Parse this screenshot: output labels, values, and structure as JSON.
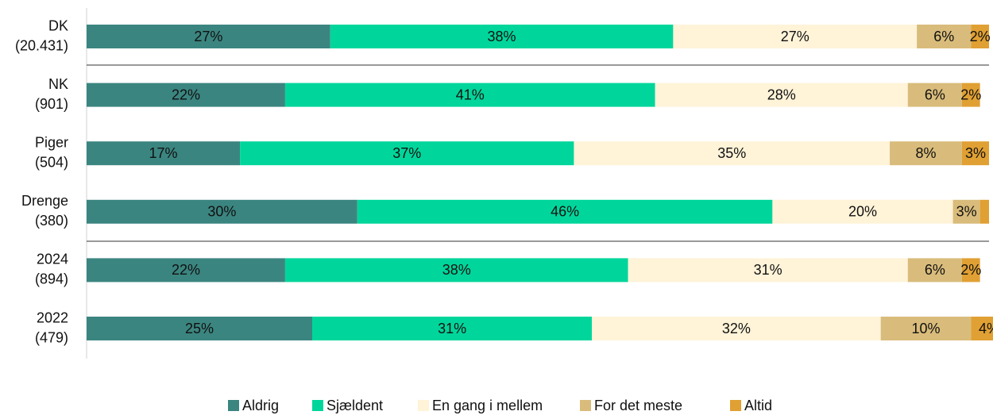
{
  "chart_data": {
    "type": "stacked_bar_horizontal",
    "categories": [
      [
        "DK",
        "(20.431)"
      ],
      [
        "NK",
        "(901)"
      ],
      [
        "Piger",
        "(504)"
      ],
      [
        "Drenge",
        "(380)"
      ],
      [
        "2024",
        "(894)"
      ],
      [
        "2022",
        "(479)"
      ]
    ],
    "xlim": [
      0,
      100
    ],
    "legend": "bottom",
    "series": [
      {
        "name": "Aldrig",
        "color": "#3b8580",
        "values": [
          27,
          22,
          17,
          30,
          22,
          25
        ],
        "value_labels": [
          "27%",
          "22%",
          "17%",
          "30%",
          "22%",
          "25%"
        ]
      },
      {
        "name": "Sjældent",
        "color": "#00d69b",
        "values": [
          38,
          41,
          37,
          46,
          38,
          31
        ],
        "value_labels": [
          "38%",
          "41%",
          "37%",
          "46%",
          "38%",
          "31%"
        ]
      },
      {
        "name": "En gang i mellem",
        "color": "#fff3d8",
        "values": [
          27,
          28,
          35,
          20,
          31,
          32
        ],
        "value_labels": [
          "27%",
          "28%",
          "35%",
          "20%",
          "31%",
          "32%"
        ]
      },
      {
        "name": "For det meste",
        "color": "#d9bc7b",
        "values": [
          6,
          6,
          8,
          3,
          6,
          10
        ],
        "value_labels": [
          "6%",
          "6%",
          "8%",
          "3%",
          "6%",
          "10%"
        ]
      },
      {
        "name": "Altid",
        "color": "#e0a033",
        "values": [
          2,
          2,
          3,
          1,
          2,
          4
        ],
        "value_labels": [
          "2%",
          "2%",
          "3%",
          null,
          "2%",
          "4%"
        ]
      }
    ]
  }
}
